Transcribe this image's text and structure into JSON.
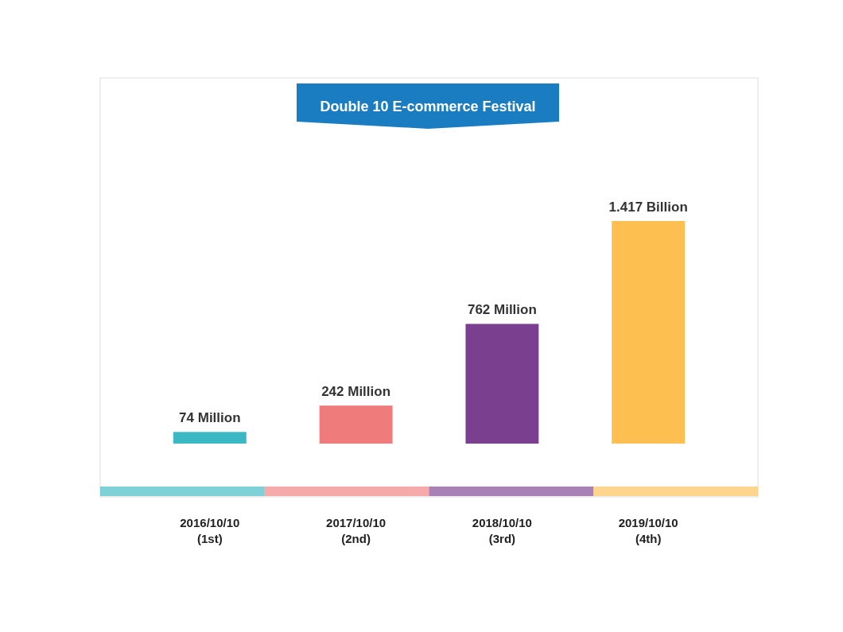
{
  "chart_data": {
    "type": "bar",
    "title": "Double 10 E-commerce Festival",
    "categories": [
      "2016/10/10\n(1st)",
      "2017/10/10\n(2nd)",
      "2018/10/10\n(3rd)",
      "2019/10/10\n(4th)"
    ],
    "values": [
      74,
      242,
      762,
      1417
    ],
    "value_labels": [
      "74 Million",
      "242 Million",
      "762 Million",
      "1.417 Billion"
    ],
    "colors": [
      "#3bb8c3",
      "#ef7b7b",
      "#7a3f8f",
      "#fdbf50"
    ]
  }
}
